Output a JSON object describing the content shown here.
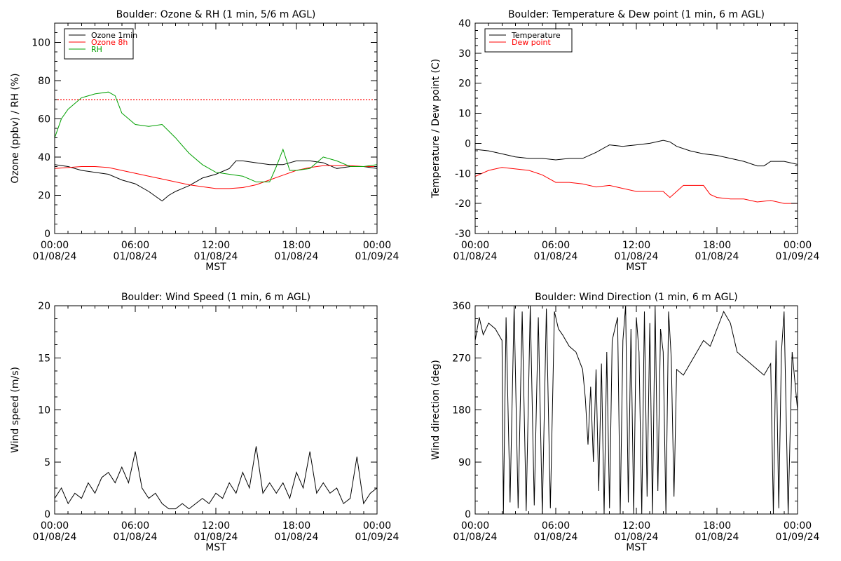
{
  "chart_data": [
    {
      "type": "line",
      "title": "Boulder: Ozone & RH (1 min, 5/6 m AGL)",
      "xlabel": "MST",
      "ylabel": "Ozone (ppbv) / RH (%)",
      "x_ticks": [
        {
          "time": "00:00",
          "date": "01/08/24"
        },
        {
          "time": "06:00",
          "date": "01/08/24"
        },
        {
          "time": "12:00",
          "date": "01/08/24"
        },
        {
          "time": "18:00",
          "date": "01/08/24"
        },
        {
          "time": "00:00",
          "date": "01/09/24"
        }
      ],
      "xlim": [
        0,
        24
      ],
      "ylim": [
        0,
        110
      ],
      "y_ticks": [
        0,
        20,
        40,
        60,
        80,
        100
      ],
      "legend_position": "top-left",
      "reference_line": {
        "y": 70,
        "color": "#ff0000",
        "style": "dotted"
      },
      "series": [
        {
          "name": "Ozone 1min",
          "color": "#000000",
          "x": [
            0,
            1,
            2,
            3,
            4,
            5,
            6,
            7,
            8,
            8.5,
            9,
            10,
            11,
            12,
            13,
            13.5,
            14,
            15,
            16,
            17,
            18,
            19,
            20,
            21,
            22,
            23,
            24
          ],
          "values": [
            36,
            35,
            33,
            32,
            31,
            28,
            26,
            22,
            17,
            20,
            22,
            25,
            29,
            31,
            34,
            38,
            38,
            37,
            36,
            36,
            38,
            38,
            37,
            34,
            35,
            35,
            34
          ]
        },
        {
          "name": "Ozone 8h",
          "color": "#ff0000",
          "x": [
            0,
            1,
            2,
            3,
            4,
            5,
            6,
            7,
            8,
            9,
            10,
            11,
            12,
            13,
            14,
            15,
            16,
            17,
            18,
            19,
            20,
            21,
            22,
            23,
            24
          ],
          "values": [
            34,
            34.5,
            35,
            35,
            34.5,
            33,
            31.5,
            30,
            28.5,
            27,
            25.5,
            24.5,
            23.5,
            23.5,
            24,
            25.5,
            28,
            30.5,
            33,
            34.5,
            35.5,
            35.5,
            35.5,
            35,
            35
          ]
        },
        {
          "name": "RH",
          "color": "#00a000",
          "x": [
            0,
            0.5,
            1,
            2,
            3,
            4,
            4.5,
            5,
            6,
            7,
            8,
            9,
            10,
            11,
            12,
            13,
            14,
            15,
            16,
            16.5,
            17,
            17.5,
            18,
            19,
            20,
            21,
            22,
            23,
            24
          ],
          "values": [
            50,
            60,
            65,
            71,
            73,
            74,
            72,
            63,
            57,
            56,
            57,
            50,
            42,
            36,
            32,
            31,
            30,
            27,
            27,
            35,
            44,
            33,
            33,
            34,
            40,
            38,
            35,
            35,
            36
          ]
        }
      ]
    },
    {
      "type": "line",
      "title": "Boulder: Temperature & Dew point (1 min, 6 m AGL)",
      "xlabel": "MST",
      "ylabel": "Temperature / Dew point (C)",
      "x_ticks": [
        {
          "time": "00:00",
          "date": "01/08/24"
        },
        {
          "time": "06:00",
          "date": "01/08/24"
        },
        {
          "time": "12:00",
          "date": "01/08/24"
        },
        {
          "time": "18:00",
          "date": "01/08/24"
        },
        {
          "time": "00:00",
          "date": "01/09/24"
        }
      ],
      "xlim": [
        0,
        24
      ],
      "ylim": [
        -30,
        40
      ],
      "y_ticks": [
        -30,
        -20,
        -10,
        0,
        10,
        20,
        30,
        40
      ],
      "legend_position": "top-left",
      "series": [
        {
          "name": "Temperature",
          "color": "#000000",
          "x": [
            0,
            1,
            2,
            3,
            4,
            5,
            6,
            7,
            8,
            9,
            10,
            11,
            12,
            13,
            14,
            14.5,
            15,
            16,
            17,
            18,
            19,
            20,
            21,
            21.5,
            22,
            23,
            24
          ],
          "values": [
            -2,
            -2.5,
            -3.5,
            -4.5,
            -5,
            -5,
            -5.5,
            -5,
            -5,
            -3,
            -0.5,
            -1,
            -0.5,
            0,
            1,
            0.5,
            -1,
            -2.5,
            -3.5,
            -4,
            -5,
            -6,
            -7.5,
            -7.5,
            -6,
            -6,
            -7
          ]
        },
        {
          "name": "Dew point",
          "color": "#ff0000",
          "x": [
            0,
            1,
            2,
            3,
            4,
            5,
            6,
            7,
            8,
            9,
            10,
            11,
            12,
            13,
            14,
            14.5,
            15,
            15.5,
            16,
            17,
            17.5,
            18,
            19,
            20,
            21,
            22,
            23,
            24
          ],
          "values": [
            -11,
            -9,
            -8,
            -8.5,
            -9,
            -10.5,
            -13,
            -13,
            -13.5,
            -14.5,
            -14,
            -15,
            -16,
            -16,
            -16,
            -18,
            -16,
            -14,
            -14,
            -14,
            -17,
            -18,
            -18.5,
            -18.5,
            -19.5,
            -19,
            -20,
            -20
          ]
        }
      ]
    },
    {
      "type": "line",
      "title": "Boulder: Wind Speed (1 min, 6 m AGL)",
      "xlabel": "MST",
      "ylabel": "Wind speed (m/s)",
      "x_ticks": [
        {
          "time": "00:00",
          "date": "01/08/24"
        },
        {
          "time": "06:00",
          "date": "01/08/24"
        },
        {
          "time": "12:00",
          "date": "01/08/24"
        },
        {
          "time": "18:00",
          "date": "01/08/24"
        },
        {
          "time": "00:00",
          "date": "01/09/24"
        }
      ],
      "xlim": [
        0,
        24
      ],
      "ylim": [
        0,
        20
      ],
      "y_ticks": [
        0,
        5,
        10,
        15,
        20
      ],
      "series": [
        {
          "name": "",
          "color": "#000000",
          "x": [
            0,
            0.5,
            1,
            1.5,
            2,
            2.5,
            3,
            3.5,
            4,
            4.5,
            5,
            5.5,
            6,
            6.5,
            7,
            7.5,
            8,
            8.5,
            9,
            9.5,
            10,
            10.5,
            11,
            11.5,
            12,
            12.5,
            13,
            13.5,
            14,
            14.5,
            15,
            15.5,
            16,
            16.5,
            17,
            17.5,
            18,
            18.5,
            19,
            19.5,
            20,
            20.5,
            21,
            21.5,
            22,
            22.5,
            23,
            23.5,
            24
          ],
          "values": [
            1.5,
            2.5,
            1,
            2,
            1.5,
            3,
            2,
            3.5,
            4,
            3,
            4.5,
            3,
            6,
            2.5,
            1.5,
            2,
            1,
            0.5,
            0.5,
            1,
            0.5,
            1,
            1.5,
            1,
            2,
            1.5,
            3,
            2,
            4,
            2.5,
            6.5,
            2,
            3,
            2,
            3,
            1.5,
            4,
            2.5,
            6,
            2,
            3,
            2,
            2.5,
            1,
            1.5,
            5.5,
            1,
            2,
            2.5
          ]
        }
      ]
    },
    {
      "type": "line",
      "title": "Boulder: Wind Direction (1 min, 6 m AGL)",
      "xlabel": "MST",
      "ylabel": "Wind direction (deg)",
      "x_ticks": [
        {
          "time": "00:00",
          "date": "01/08/24"
        },
        {
          "time": "06:00",
          "date": "01/08/24"
        },
        {
          "time": "12:00",
          "date": "01/08/24"
        },
        {
          "time": "18:00",
          "date": "01/08/24"
        },
        {
          "time": "00:00",
          "date": "01/09/24"
        }
      ],
      "xlim": [
        0,
        24
      ],
      "ylim": [
        0,
        360
      ],
      "y_ticks": [
        0,
        90,
        180,
        270,
        360
      ],
      "series": [
        {
          "name": "",
          "color": "#000000",
          "x": [
            0,
            0.3,
            0.6,
            1,
            1.5,
            2,
            2.1,
            2.3,
            2.6,
            2.9,
            3.2,
            3.5,
            3.8,
            4.1,
            4.4,
            4.7,
            5,
            5.3,
            5.6,
            5.9,
            6.2,
            6.5,
            7,
            7.5,
            8,
            8.2,
            8.4,
            8.6,
            8.8,
            9,
            9.2,
            9.4,
            9.6,
            9.8,
            10,
            10.2,
            10.4,
            10.6,
            10.8,
            11,
            11.2,
            11.4,
            11.6,
            11.8,
            12,
            12.2,
            12.4,
            12.6,
            12.8,
            13,
            13.2,
            13.4,
            13.6,
            13.8,
            14,
            14.2,
            14.4,
            14.6,
            14.8,
            15,
            15.5,
            16,
            16.5,
            17,
            17.5,
            18,
            18.5,
            19,
            19.5,
            20,
            20.5,
            21,
            21.5,
            22,
            22.2,
            22.4,
            22.6,
            22.8,
            23,
            23.3,
            23.6,
            24
          ],
          "values": [
            300,
            340,
            310,
            330,
            320,
            300,
            0,
            340,
            20,
            360,
            10,
            350,
            5,
            360,
            15,
            340,
            0,
            355,
            10,
            350,
            320,
            310,
            290,
            280,
            250,
            200,
            120,
            220,
            90,
            250,
            40,
            260,
            0,
            280,
            10,
            300,
            320,
            340,
            0,
            300,
            360,
            20,
            320,
            0,
            340,
            280,
            0,
            350,
            30,
            330,
            0,
            360,
            40,
            320,
            280,
            0,
            350,
            270,
            30,
            250,
            240,
            260,
            280,
            300,
            290,
            320,
            350,
            330,
            280,
            270,
            260,
            250,
            240,
            260,
            0,
            300,
            10,
            280,
            350,
            0,
            280,
            180
          ]
        }
      ]
    }
  ]
}
